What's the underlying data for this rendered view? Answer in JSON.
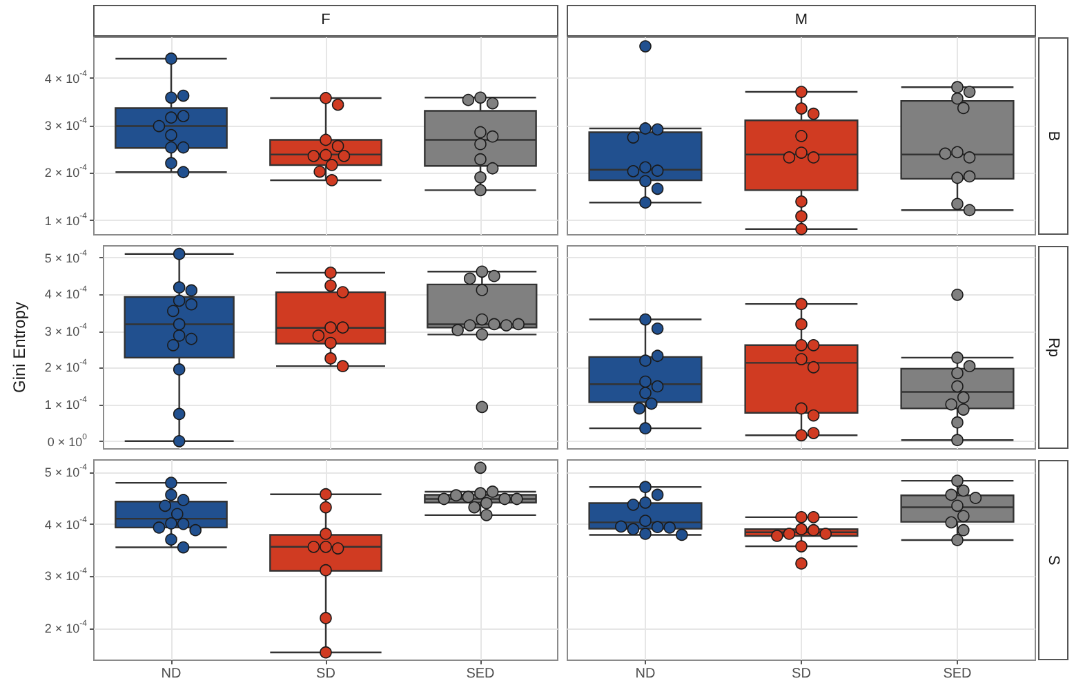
{
  "chart_data": [
    {
      "type": "box",
      "title": "F",
      "categories": [
        "ND",
        "SD",
        "SED"
      ],
      "colors": [
        "#21508f",
        "#d03b22",
        "#808080"
      ],
      "boxes": [
        {
          "low": 0.000202,
          "q1": 0.000253,
          "median": 0.000299,
          "q3": 0.000337,
          "high": 0.000441
        },
        {
          "low": 0.000185,
          "q1": 0.000217,
          "median": 0.000239,
          "q3": 0.00027,
          "high": 0.000358
        },
        {
          "low": 0.000164,
          "q1": 0.000215,
          "median": 0.00027,
          "q3": 0.000331,
          "high": 0.000359
        }
      ],
      "series": [
        {
          "type": "scatter",
          "color": "#21508f",
          "x": [
            "ND",
            "ND",
            "ND",
            "ND",
            "ND",
            "ND",
            "ND",
            "ND",
            "ND",
            "ND",
            "ND"
          ],
          "values": [
            0.000441,
            0.000359,
            0.000363,
            0.000317,
            0.00032,
            0.000299,
            0.00028,
            0.000254,
            0.000254,
            0.000221,
            0.000202
          ]
        },
        {
          "type": "scatter",
          "color": "#d03b22",
          "x": [
            "SD",
            "SD",
            "SD",
            "SD",
            "SD",
            "SD",
            "SD",
            "SD",
            "SD",
            "SD"
          ],
          "values": [
            0.000358,
            0.000344,
            0.00027,
            0.000257,
            0.000238,
            0.000236,
            0.000236,
            0.000217,
            0.000203,
            0.000185
          ]
        },
        {
          "type": "scatter",
          "color": "#808080",
          "x": [
            "SED",
            "SED",
            "SED",
            "SED",
            "SED",
            "SED",
            "SED",
            "SED",
            "SED",
            "SED"
          ],
          "values": [
            0.000359,
            0.000347,
            0.000354,
            0.000286,
            0.000277,
            0.000261,
            0.000229,
            0.00021,
            0.000191,
            0.000164
          ]
        }
      ],
      "ylim": [
        7e-05,
        0.000486
      ],
      "yticks": [
        {
          "value": 0.0001,
          "label": "1 × 10$^{-4}$"
        },
        {
          "value": 0.0002,
          "label": "2 × 10$^{-4}$"
        },
        {
          "value": 0.0003,
          "label": "3 × 10$^{-4}$"
        },
        {
          "value": 0.0004,
          "label": "4 × 10$^{-4}$"
        }
      ],
      "grid": true,
      "tick_labels": "y"
    },
    {
      "type": "box",
      "title": "M",
      "annotations": [
        "B"
      ],
      "categories": [
        "ND",
        "SD",
        "SED"
      ],
      "colors": [
        "#21508f",
        "#d03b22",
        "#808080"
      ],
      "boxes": [
        {
          "low": 0.000138,
          "q1": 0.000185,
          "median": 0.000207,
          "q3": 0.000286,
          "high": 0.000294
        },
        {
          "low": 8.2e-05,
          "q1": 0.000164,
          "median": 0.000239,
          "q3": 0.000311,
          "high": 0.000371
        },
        {
          "low": 0.000122,
          "q1": 0.000188,
          "median": 0.000239,
          "q3": 0.000352,
          "high": 0.000381
        }
      ],
      "series": [
        {
          "type": "scatter",
          "color": "#21508f",
          "x": [
            "ND",
            "ND",
            "ND",
            "ND",
            "ND",
            "ND",
            "ND",
            "ND",
            "ND",
            "ND"
          ],
          "values": [
            0.000467,
            0.000294,
            0.000292,
            0.000275,
            0.000212,
            0.000205,
            0.000204,
            0.000183,
            0.000167,
            0.000138
          ]
        },
        {
          "type": "scatter",
          "color": "#d03b22",
          "x": [
            "SD",
            "SD",
            "SD",
            "SD",
            "SD",
            "SD",
            "SD",
            "SD",
            "SD",
            "SD"
          ],
          "values": [
            0.000371,
            0.000336,
            0.000325,
            0.000278,
            0.000243,
            0.000233,
            0.000233,
            0.00014,
            0.000109,
            8.2e-05
          ]
        },
        {
          "type": "scatter",
          "color": "#808080",
          "x": [
            "SED",
            "SED",
            "SED",
            "SED",
            "SED",
            "SED",
            "SED",
            "SED",
            "SED",
            "SED",
            "SED"
          ],
          "values": [
            0.000381,
            0.000371,
            0.000357,
            0.000337,
            0.000244,
            0.000233,
            0.000241,
            0.00019,
            0.000193,
            0.000135,
            0.000122
          ]
        }
      ],
      "ylim": [
        7e-05,
        0.000486
      ],
      "yticks": [
        {
          "value": 0.0001,
          "label": null
        },
        {
          "value": 0.0002,
          "label": null
        },
        {
          "value": 0.0003,
          "label": null
        },
        {
          "value": 0.0004,
          "label": null
        }
      ],
      "grid": true,
      "tick_labels": false
    },
    {
      "type": "box",
      "ylabel": "Gini Entropy",
      "categories": [
        "ND",
        "SD",
        "SED"
      ],
      "colors": [
        "#21508f",
        "#d03b22",
        "#808080"
      ],
      "boxes": [
        {
          "low": 1e-06,
          "q1": 0.000228,
          "median": 0.000319,
          "q3": 0.000393,
          "high": 0.00051
        },
        {
          "low": 0.000205,
          "q1": 0.000266,
          "median": 0.000309,
          "q3": 0.000406,
          "high": 0.000459
        },
        {
          "low": 0.000291,
          "q1": 0.00031,
          "median": 0.000319,
          "q3": 0.000427,
          "high": 0.000462
        }
      ],
      "series": [
        {
          "type": "scatter",
          "color": "#21508f",
          "x": [
            "ND",
            "ND",
            "ND",
            "ND",
            "ND",
            "ND",
            "ND",
            "ND",
            "ND",
            "ND",
            "ND",
            "ND",
            "ND"
          ],
          "values": [
            0.00051,
            0.000419,
            0.000411,
            0.000383,
            0.000373,
            0.000355,
            0.000319,
            0.000288,
            0.000279,
            0.000262,
            0.000196,
            7.5e-05,
            1e-06
          ]
        },
        {
          "type": "scatter",
          "color": "#d03b22",
          "x": [
            "SD",
            "SD",
            "SD",
            "SD",
            "SD",
            "SD",
            "SD",
            "SD",
            "SD"
          ],
          "values": [
            0.000459,
            0.000424,
            0.000406,
            0.00031,
            0.00031,
            0.000288,
            0.000268,
            0.000226,
            0.000205
          ]
        },
        {
          "type": "scatter",
          "color": "#808080",
          "x": [
            "SED",
            "SED",
            "SED",
            "SED",
            "SED",
            "SED",
            "SED",
            "SED",
            "SED",
            "SED",
            "SED",
            "SED"
          ],
          "values": [
            0.000462,
            0.00045,
            0.000443,
            0.000412,
            0.000332,
            0.000319,
            0.000316,
            0.000316,
            0.000303,
            0.000319,
            0.000291,
            9.4e-05
          ]
        }
      ],
      "ylim": [
        -2e-05,
        0.000532
      ],
      "yticks": [
        {
          "value": 0,
          "label": "0 × 10$^{0}$"
        },
        {
          "value": 0.0001,
          "label": "1 × 10$^{-4}$"
        },
        {
          "value": 0.0002,
          "label": "2 × 10$^{-4}$"
        },
        {
          "value": 0.0003,
          "label": "3 × 10$^{-4}$"
        },
        {
          "value": 0.0004,
          "label": "4 × 10$^{-4}$"
        },
        {
          "value": 0.0005,
          "label": "5 × 10$^{-4}$"
        }
      ],
      "grid": true,
      "tick_labels": "y"
    },
    {
      "type": "box",
      "annotations": [
        "Rp"
      ],
      "categories": [
        "ND",
        "SD",
        "SED"
      ],
      "colors": [
        "#21508f",
        "#d03b22",
        "#808080"
      ],
      "boxes": [
        {
          "low": 3.6e-05,
          "q1": 0.000107,
          "median": 0.000156,
          "q3": 0.00023,
          "high": 0.000332
        },
        {
          "low": 1.7e-05,
          "q1": 7.8e-05,
          "median": 0.000214,
          "q3": 0.000262,
          "high": 0.000374
        },
        {
          "low": 4e-06,
          "q1": 9e-05,
          "median": 0.000135,
          "q3": 0.000198,
          "high": 0.000228
        }
      ],
      "series": [
        {
          "type": "scatter",
          "color": "#21508f",
          "x": [
            "ND",
            "ND",
            "ND",
            "ND",
            "ND",
            "ND",
            "ND",
            "ND",
            "ND",
            "ND"
          ],
          "values": [
            0.000332,
            0.000307,
            0.00022,
            0.000233,
            0.000163,
            0.00015,
            0.000132,
            0.000103,
            9e-05,
            3.6e-05
          ]
        },
        {
          "type": "scatter",
          "color": "#d03b22",
          "x": [
            "SD",
            "SD",
            "SD",
            "SD",
            "SD",
            "SD",
            "SD",
            "SD",
            "SD",
            "SD"
          ],
          "values": [
            0.000374,
            0.000319,
            0.000262,
            0.000262,
            0.000224,
            0.000202,
            9e-05,
            7.1e-05,
            1.7e-05,
            2.3e-05
          ]
        },
        {
          "type": "scatter",
          "color": "#808080",
          "x": [
            "SED",
            "SED",
            "SED",
            "SED",
            "SED",
            "SED",
            "SED",
            "SED",
            "SED",
            "SED"
          ],
          "values": [
            0.000399,
            0.000228,
            0.000205,
            0.000186,
            0.00015,
            0.00012,
            0.000101,
            8.7e-05,
            5.2e-05,
            4e-06
          ]
        }
      ],
      "ylim": [
        -2e-05,
        0.000532
      ],
      "yticks": [
        {
          "value": 0,
          "label": null
        },
        {
          "value": 0.0001,
          "label": null
        },
        {
          "value": 0.0002,
          "label": null
        },
        {
          "value": 0.0003,
          "label": null
        },
        {
          "value": 0.0004,
          "label": null
        },
        {
          "value": 0.0005,
          "label": null
        }
      ],
      "grid": true,
      "tick_labels": false
    },
    {
      "type": "box",
      "categories": [
        "ND",
        "SD",
        "SED"
      ],
      "colors": [
        "#21508f",
        "#d03b22",
        "#808080"
      ],
      "boxes": [
        {
          "low": 0.000356,
          "q1": 0.000394,
          "median": 0.000411,
          "q3": 0.000444,
          "high": 0.00048
        },
        {
          "low": 0.000154,
          "q1": 0.000311,
          "median": 0.000357,
          "q3": 0.00038,
          "high": 0.000458
        },
        {
          "low": 0.000418,
          "q1": 0.000442,
          "median": 0.000449,
          "q3": 0.000457,
          "high": 0.000463
        }
      ],
      "series": [
        {
          "type": "scatter",
          "color": "#21508f",
          "x": [
            "ND",
            "ND",
            "ND",
            "ND",
            "ND",
            "ND",
            "ND",
            "ND",
            "ND",
            "ND",
            "ND"
          ],
          "values": [
            0.00048,
            0.000457,
            0.000447,
            0.000436,
            0.00042,
            0.000402,
            0.000401,
            0.000394,
            0.000389,
            0.000371,
            0.000356
          ]
        },
        {
          "type": "scatter",
          "color": "#d03b22",
          "x": [
            "SD",
            "SD",
            "SD",
            "SD",
            "SD",
            "SD",
            "SD",
            "SD",
            "SD"
          ],
          "values": [
            0.000458,
            0.000433,
            0.000382,
            0.000357,
            0.000354,
            0.000357,
            0.000312,
            0.00022,
            0.000154
          ]
        },
        {
          "type": "scatter",
          "color": "#808080",
          "x": [
            "SED",
            "SED",
            "SED",
            "SED",
            "SED",
            "SED",
            "SED",
            "SED",
            "SED",
            "SED",
            "SED"
          ],
          "values": [
            0.000509,
            0.00046,
            0.000463,
            0.000453,
            0.000449,
            0.000456,
            0.000449,
            0.000441,
            0.000433,
            0.000418,
            0.000449
          ]
        }
      ],
      "ylim": [
        0.000139,
        0.000524
      ],
      "yticks": [
        {
          "value": 0.0002,
          "label": "2 × 10$^{-4}$"
        },
        {
          "value": 0.0003,
          "label": "3 × 10$^{-4}$"
        },
        {
          "value": 0.0004,
          "label": "4 × 10$^{-4}$"
        },
        {
          "value": 0.0005,
          "label": "5 × 10$^{-4}$"
        }
      ],
      "grid": true
    },
    {
      "type": "box",
      "annotations": [
        "S"
      ],
      "categories": [
        "ND",
        "SD",
        "SED"
      ],
      "colors": [
        "#21508f",
        "#d03b22",
        "#808080"
      ],
      "boxes": [
        {
          "low": 0.00038,
          "q1": 0.000392,
          "median": 0.000404,
          "q3": 0.000441,
          "high": 0.000472
        },
        {
          "low": 0.000358,
          "q1": 0.000378,
          "median": 0.000385,
          "q3": 0.000391,
          "high": 0.000414
        },
        {
          "low": 0.00037,
          "q1": 0.000405,
          "median": 0.000433,
          "q3": 0.000456,
          "high": 0.000484
        }
      ],
      "series": [
        {
          "type": "scatter",
          "color": "#21508f",
          "x": [
            "ND",
            "ND",
            "ND",
            "ND",
            "ND",
            "ND",
            "ND",
            "ND",
            "ND",
            "ND",
            "ND"
          ],
          "values": [
            0.000472,
            0.000457,
            0.000442,
            0.000438,
            0.000407,
            0.000395,
            0.000391,
            0.000382,
            0.000394,
            0.000396,
            0.00038
          ]
        },
        {
          "type": "scatter",
          "color": "#d03b22",
          "x": [
            "SD",
            "SD",
            "SD",
            "SD",
            "SD",
            "SD",
            "SD",
            "SD",
            "SD"
          ],
          "values": [
            0.000414,
            0.000414,
            0.000391,
            0.000389,
            0.000382,
            0.000382,
            0.000378,
            0.000358,
            0.000325
          ]
        },
        {
          "type": "scatter",
          "color": "#808080",
          "x": [
            "SED",
            "SED",
            "SED",
            "SED",
            "SED",
            "SED",
            "SED",
            "SED",
            "SED"
          ],
          "values": [
            0.000484,
            0.000465,
            0.000457,
            0.000451,
            0.000436,
            0.000416,
            0.000404,
            0.000389,
            0.00037
          ]
        }
      ],
      "ylim": [
        0.000139,
        0.000524
      ],
      "yticks": [
        {
          "value": 0.0002,
          "label": null
        },
        {
          "value": 0.0003,
          "label": null
        },
        {
          "value": 0.0004,
          "label": null
        },
        {
          "value": 0.0005,
          "label": null
        }
      ],
      "grid": true,
      "tick_labels": "x"
    }
  ]
}
